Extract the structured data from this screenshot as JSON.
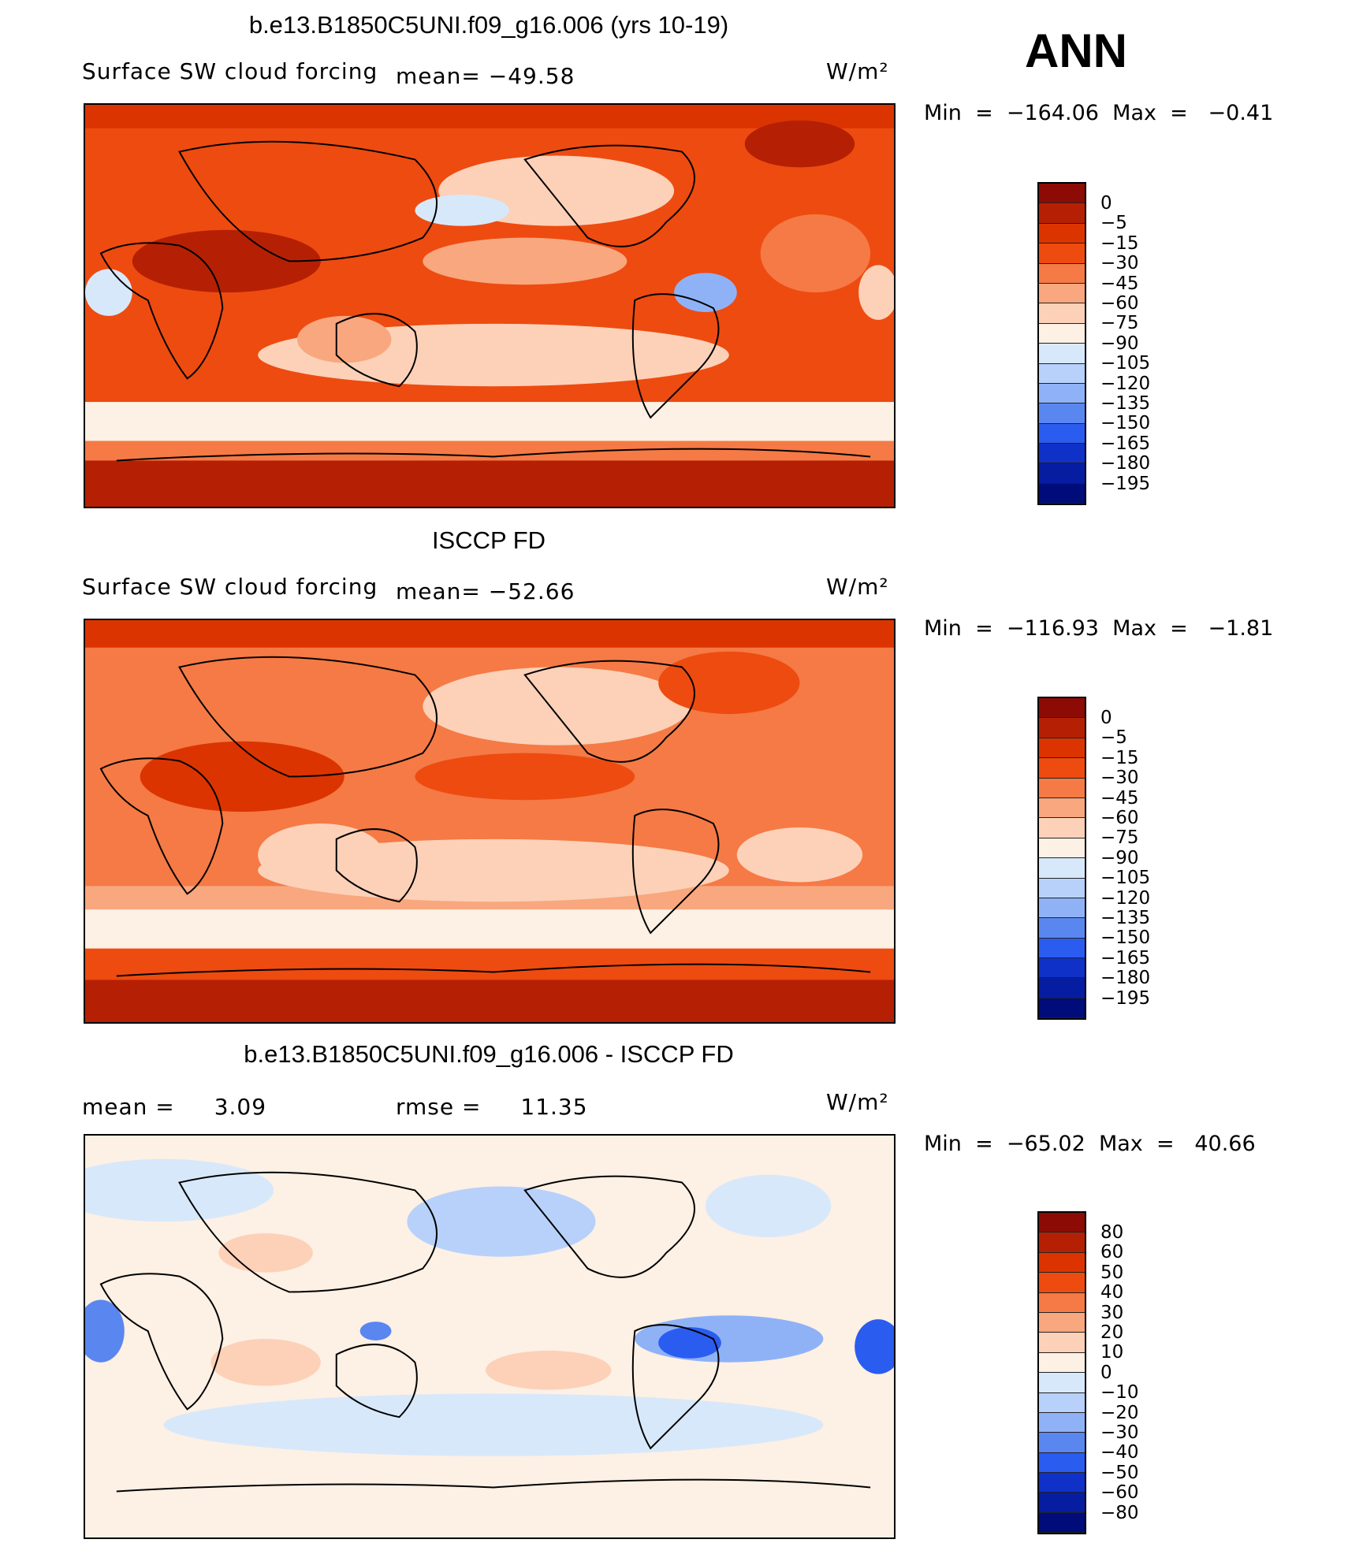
{
  "page": {
    "season": "ANN"
  },
  "panels": [
    {
      "title": "b.e13.B1850C5UNI.f09_g16.006 (yrs 10-19)",
      "left_label": "Surface SW cloud forcing",
      "mean_label": "mean=",
      "mean_value": "−49.58",
      "units": "W/m²",
      "min_label": "Min",
      "min_value": "−164.06",
      "max_label": "Max",
      "max_value": "−0.41"
    },
    {
      "title": "ISCCP FD",
      "left_label": "Surface SW cloud forcing",
      "mean_label": "mean=",
      "mean_value": "−52.66",
      "units": "W/m²",
      "min_label": "Min",
      "min_value": "−116.93",
      "max_label": "Max",
      "max_value": "−1.81"
    },
    {
      "title": "b.e13.B1850C5UNI.f09_g16.006 - ISCCP FD",
      "mean_label": "mean =",
      "mean_value": "3.09",
      "rmse_label": "rmse =",
      "rmse_value": "11.35",
      "units": "W/m²",
      "min_label": "Min",
      "min_value": "−65.02",
      "max_label": "Max",
      "max_value": "40.66"
    }
  ],
  "chart_data": [
    {
      "type": "heatmap",
      "title": "b.e13.B1850C5UNI.f09_g16.006 (yrs 10-19)",
      "variable": "Surface SW cloud forcing",
      "units": "W/m²",
      "mean": -49.58,
      "min": -164.06,
      "max": -0.41,
      "colorbar_levels": [
        "0",
        "−5",
        "−15",
        "−30",
        "−45",
        "−60",
        "−75",
        "−90",
        "−105",
        "−120",
        "−135",
        "−150",
        "−165",
        "−180",
        "−195"
      ],
      "colorbar_colors": [
        "#8c0b05",
        "#b52004",
        "#dc3400",
        "#ee4b10",
        "#f57a45",
        "#f9a77f",
        "#fcd1b8",
        "#fdf0e4",
        "#d8e8fb",
        "#b7d1fb",
        "#8fb2f7",
        "#5a86f0",
        "#2a5cf0",
        "#1031c8",
        "#061da2",
        "#000c7a"
      ]
    },
    {
      "type": "heatmap",
      "title": "ISCCP FD",
      "variable": "Surface SW cloud forcing",
      "units": "W/m²",
      "mean": -52.66,
      "min": -116.93,
      "max": -1.81,
      "colorbar_levels": [
        "0",
        "−5",
        "−15",
        "−30",
        "−45",
        "−60",
        "−75",
        "−90",
        "−105",
        "−120",
        "−135",
        "−150",
        "−165",
        "−180",
        "−195"
      ],
      "colorbar_colors": [
        "#8c0b05",
        "#b52004",
        "#dc3400",
        "#ee4b10",
        "#f57a45",
        "#f9a77f",
        "#fcd1b8",
        "#fdf0e4",
        "#d8e8fb",
        "#b7d1fb",
        "#8fb2f7",
        "#5a86f0",
        "#2a5cf0",
        "#1031c8",
        "#061da2",
        "#000c7a"
      ]
    },
    {
      "type": "heatmap",
      "title": "b.e13.B1850C5UNI.f09_g16.006 - ISCCP FD",
      "units": "W/m²",
      "mean": 3.09,
      "rmse": 11.35,
      "min": -65.02,
      "max": 40.66,
      "colorbar_levels": [
        "80",
        "60",
        "50",
        "40",
        "30",
        "20",
        "10",
        "0",
        "−10",
        "−20",
        "−30",
        "−40",
        "−50",
        "−60",
        "−80"
      ],
      "colorbar_colors": [
        "#8c0b05",
        "#b52004",
        "#dc3400",
        "#ee4b10",
        "#f57a45",
        "#f9a77f",
        "#fcd1b8",
        "#fdf0e4",
        "#d8e8fb",
        "#b7d1fb",
        "#8fb2f7",
        "#5a86f0",
        "#2a5cf0",
        "#1031c8",
        "#061da2",
        "#000c7a"
      ]
    }
  ]
}
